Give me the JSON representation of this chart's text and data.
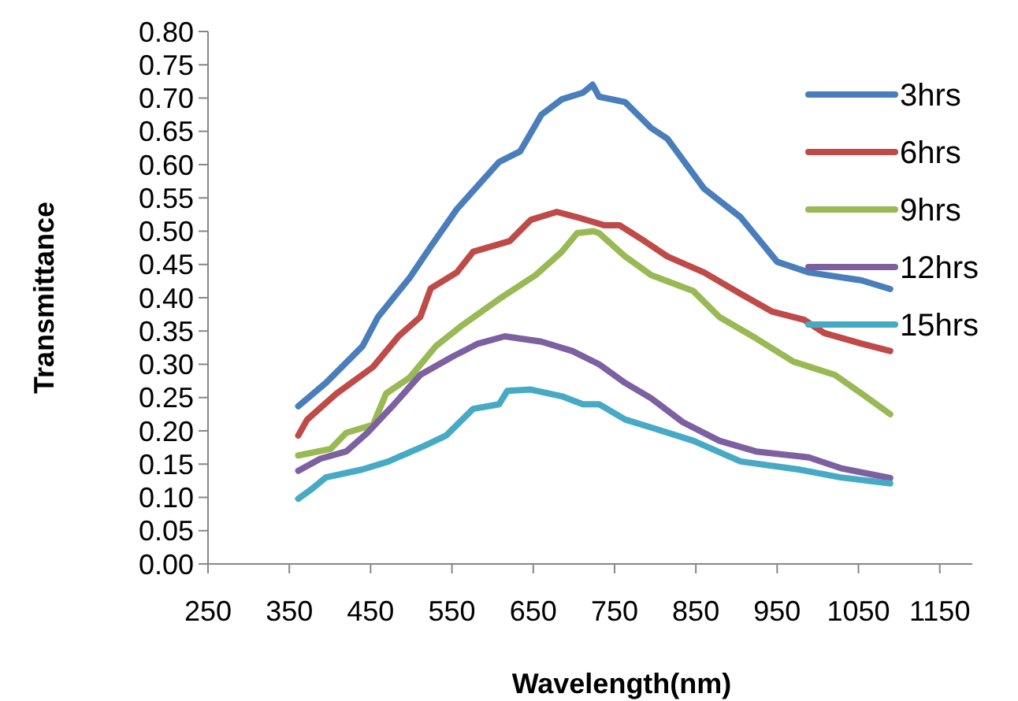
{
  "chart_data": {
    "type": "line",
    "xlabel": "Wavelength(nm)",
    "ylabel": "Transmittance",
    "xlim": [
      250,
      1190
    ],
    "xticks": [
      250,
      350,
      450,
      550,
      650,
      750,
      850,
      950,
      1050,
      1150
    ],
    "ylim": [
      0,
      0.8
    ],
    "yticks": [
      {
        "value": 0,
        "label": "0.00"
      },
      {
        "value": 0.05,
        "label": "0.05"
      },
      {
        "value": 0.1,
        "label": "0.10"
      },
      {
        "value": 0.15,
        "label": "0.15"
      },
      {
        "value": 0.2,
        "label": "0.20"
      },
      {
        "value": 0.25,
        "label": "0.25"
      },
      {
        "value": 0.3,
        "label": "0.30"
      },
      {
        "value": 0.35,
        "label": "0.35"
      },
      {
        "value": 0.4,
        "label": "0.40"
      },
      {
        "value": 0.45,
        "label": "0.45"
      },
      {
        "value": 0.5,
        "label": "0.50"
      },
      {
        "value": 0.55,
        "label": "0.55"
      },
      {
        "value": 0.6,
        "label": "0.60"
      },
      {
        "value": 0.65,
        "label": "0.65"
      },
      {
        "value": 0.7,
        "label": "0.70"
      },
      {
        "value": 0.75,
        "label": "0.75"
      },
      {
        "value": 0.8,
        "label": "0.80"
      }
    ],
    "grid": false,
    "legend": "top right",
    "marker": "none",
    "line_style": "solid",
    "series": [
      {
        "name": "3hrs",
        "color": "#4a7ebb",
        "x": [
          361,
          395,
          440,
          459,
          498,
          524,
          556,
          608,
          634,
          660,
          685,
          711,
          723,
          731,
          763,
          795,
          815,
          860,
          905,
          950,
          989,
          1054,
          1089
        ],
        "values": [
          0.237,
          0.272,
          0.327,
          0.371,
          0.43,
          0.477,
          0.533,
          0.604,
          0.62,
          0.675,
          0.698,
          0.708,
          0.72,
          0.702,
          0.694,
          0.655,
          0.639,
          0.564,
          0.521,
          0.454,
          0.438,
          0.426,
          0.413
        ]
      },
      {
        "name": "6hrs",
        "color": "#be4b48",
        "x": [
          361,
          372,
          408,
          453,
          485,
          511,
          524,
          556,
          576,
          621,
          647,
          679,
          704,
          737,
          756,
          782,
          815,
          860,
          905,
          944,
          983,
          1008,
          1054,
          1089
        ],
        "values": [
          0.193,
          0.217,
          0.256,
          0.296,
          0.343,
          0.371,
          0.414,
          0.438,
          0.469,
          0.485,
          0.517,
          0.529,
          0.521,
          0.509,
          0.509,
          0.489,
          0.462,
          0.438,
          0.406,
          0.379,
          0.367,
          0.347,
          0.331,
          0.32
        ]
      },
      {
        "name": "9hrs",
        "color": "#98b954",
        "x": [
          361,
          401,
          420,
          453,
          469,
          498,
          530,
          563,
          608,
          653,
          685,
          704,
          724,
          731,
          763,
          795,
          847,
          879,
          924,
          970,
          1021,
          1054,
          1089
        ],
        "values": [
          0.163,
          0.173,
          0.197,
          0.209,
          0.256,
          0.28,
          0.327,
          0.359,
          0.398,
          0.434,
          0.469,
          0.497,
          0.5,
          0.497,
          0.462,
          0.434,
          0.41,
          0.371,
          0.339,
          0.304,
          0.284,
          0.256,
          0.225
        ]
      },
      {
        "name": "12hrs",
        "color": "#7d60a0",
        "x": [
          361,
          388,
          420,
          446,
          479,
          511,
          550,
          582,
          615,
          660,
          698,
          731,
          763,
          795,
          834,
          879,
          924,
          989,
          1028,
          1089
        ],
        "values": [
          0.14,
          0.158,
          0.169,
          0.197,
          0.24,
          0.284,
          0.311,
          0.331,
          0.342,
          0.334,
          0.32,
          0.3,
          0.272,
          0.249,
          0.213,
          0.185,
          0.169,
          0.16,
          0.144,
          0.129
        ]
      },
      {
        "name": "15hrs",
        "color": "#46aac5",
        "x": [
          361,
          379,
          395,
          440,
          472,
          517,
          543,
          576,
          608,
          618,
          647,
          685,
          711,
          731,
          763,
          795,
          847,
          905,
          976,
          1028,
          1089
        ],
        "values": [
          0.098,
          0.114,
          0.13,
          0.142,
          0.154,
          0.178,
          0.193,
          0.233,
          0.24,
          0.26,
          0.262,
          0.252,
          0.24,
          0.24,
          0.217,
          0.205,
          0.185,
          0.154,
          0.142,
          0.13,
          0.121
        ]
      }
    ]
  }
}
